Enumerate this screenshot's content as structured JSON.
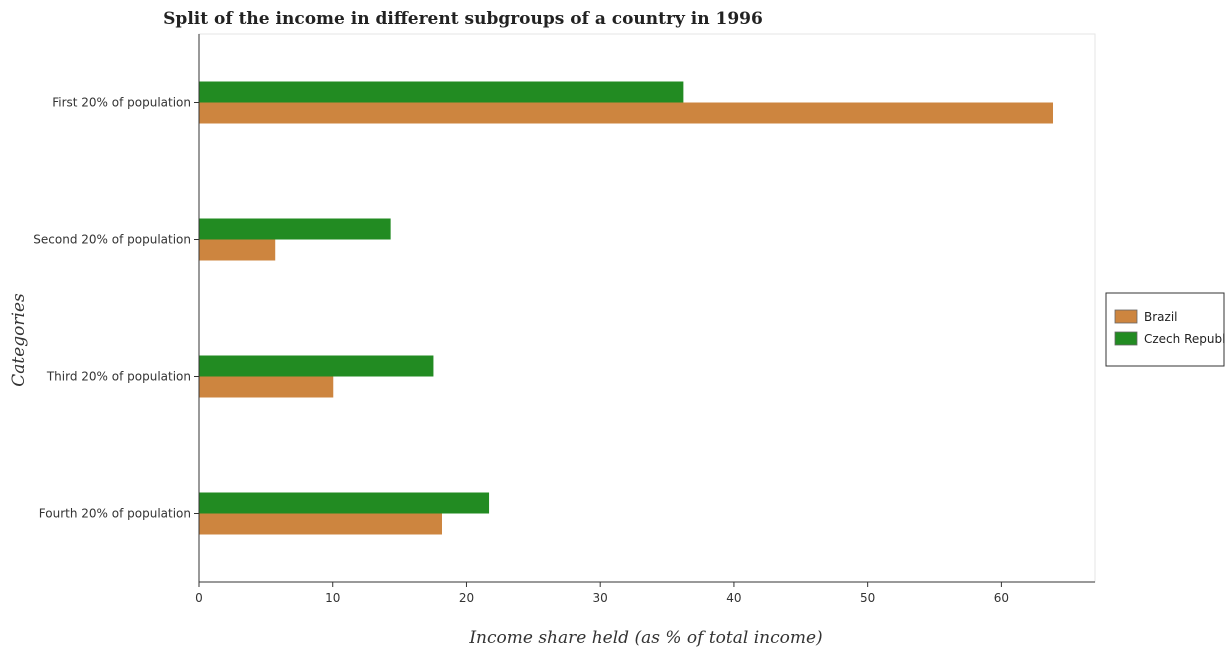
{
  "chart_data": {
    "type": "bar",
    "orientation": "horizontal",
    "title": "Split of the income in different subgroups of a country in 1996",
    "xlabel": "Income share held (as % of total income)",
    "ylabel": "Categories",
    "categories": [
      "First 20% of population",
      "Second 20% of population",
      "Third 20% of population",
      "Fourth 20% of population"
    ],
    "series": [
      {
        "name": "Brazil",
        "color": "#cd853f",
        "values": [
          63.86,
          5.7,
          10.04,
          18.17
        ]
      },
      {
        "name": "Czech Republic",
        "color": "#228b22",
        "values": [
          36.22,
          14.33,
          17.53,
          21.69
        ]
      }
    ],
    "xlim": [
      0,
      67
    ],
    "xticks": [
      0,
      10,
      20,
      30,
      40,
      50,
      60
    ],
    "grid": false,
    "legend_position": "right"
  }
}
